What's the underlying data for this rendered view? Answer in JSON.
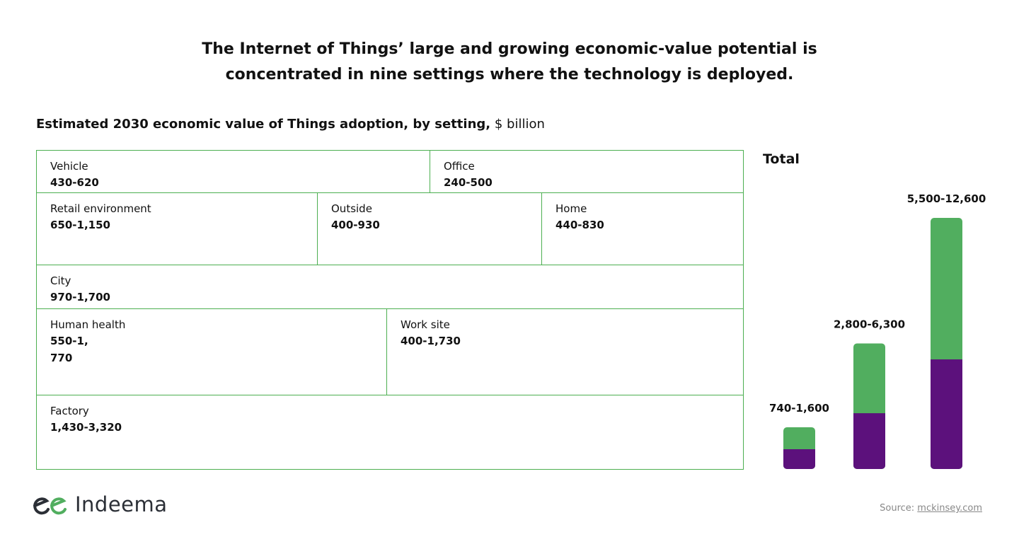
{
  "title_line1": "The Internet of Things’ large and growing economic-value potential is",
  "title_line2": "concentrated in nine settings where the technology is deployed.",
  "subtitle_bold": "Estimated 2030 economic value of Things adoption, by setting,",
  "subtitle_unit": "$ billion",
  "settings": [
    {
      "name": "Vehicle",
      "value": "430-620"
    },
    {
      "name": "Office",
      "value": "240-500"
    },
    {
      "name": "Retail environment",
      "value": "650-1,150"
    },
    {
      "name": "Outside",
      "value": "400-930"
    },
    {
      "name": "Home",
      "value": "440-830"
    },
    {
      "name": "City",
      "value": "970-1,700"
    },
    {
      "name": "Human health",
      "value": "550-1,770"
    },
    {
      "name": "Work site",
      "value": "400-1,730"
    },
    {
      "name": "Factory",
      "value": "1,430-3,320"
    }
  ],
  "chart_data": {
    "type": "bar",
    "title": "Total",
    "categories": [
      "740-1,600",
      "2,800-6,300",
      "5,500-12,600"
    ],
    "series": [
      {
        "name": "low",
        "values": [
          740,
          2800,
          5500
        ],
        "color": "#5c117c"
      },
      {
        "name": "high",
        "values": [
          1600,
          6300,
          12600
        ],
        "color": "#51ae5f"
      }
    ],
    "ylim": [
      0,
      12600
    ]
  },
  "logo": "Indeema",
  "source_label": "Source:",
  "source_link": "mckinsey.com"
}
